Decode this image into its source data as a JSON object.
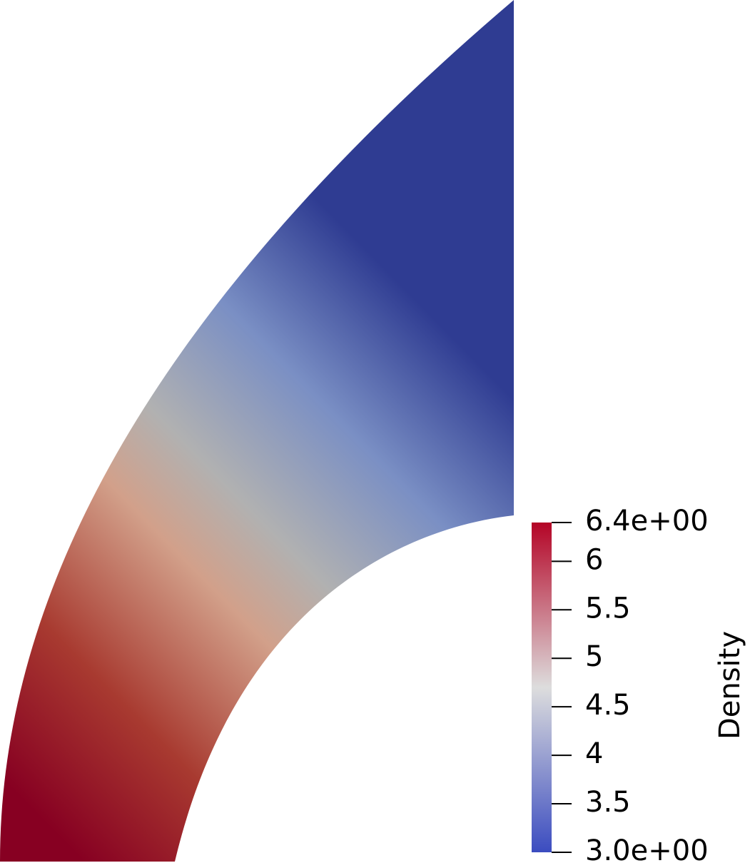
{
  "chart_data": {
    "type": "field",
    "colorbar_title": "Density",
    "clim": [
      3,
      6.4
    ],
    "ticks": [
      {
        "value": 6.4,
        "label": "6.4e+00"
      },
      6,
      5.5,
      5,
      4.5,
      4,
      3.5,
      {
        "value": 3,
        "label": "3.0e+00"
      }
    ],
    "colormap": [
      "#3b4cc0",
      "#dddddd",
      "#b40426"
    ]
  }
}
